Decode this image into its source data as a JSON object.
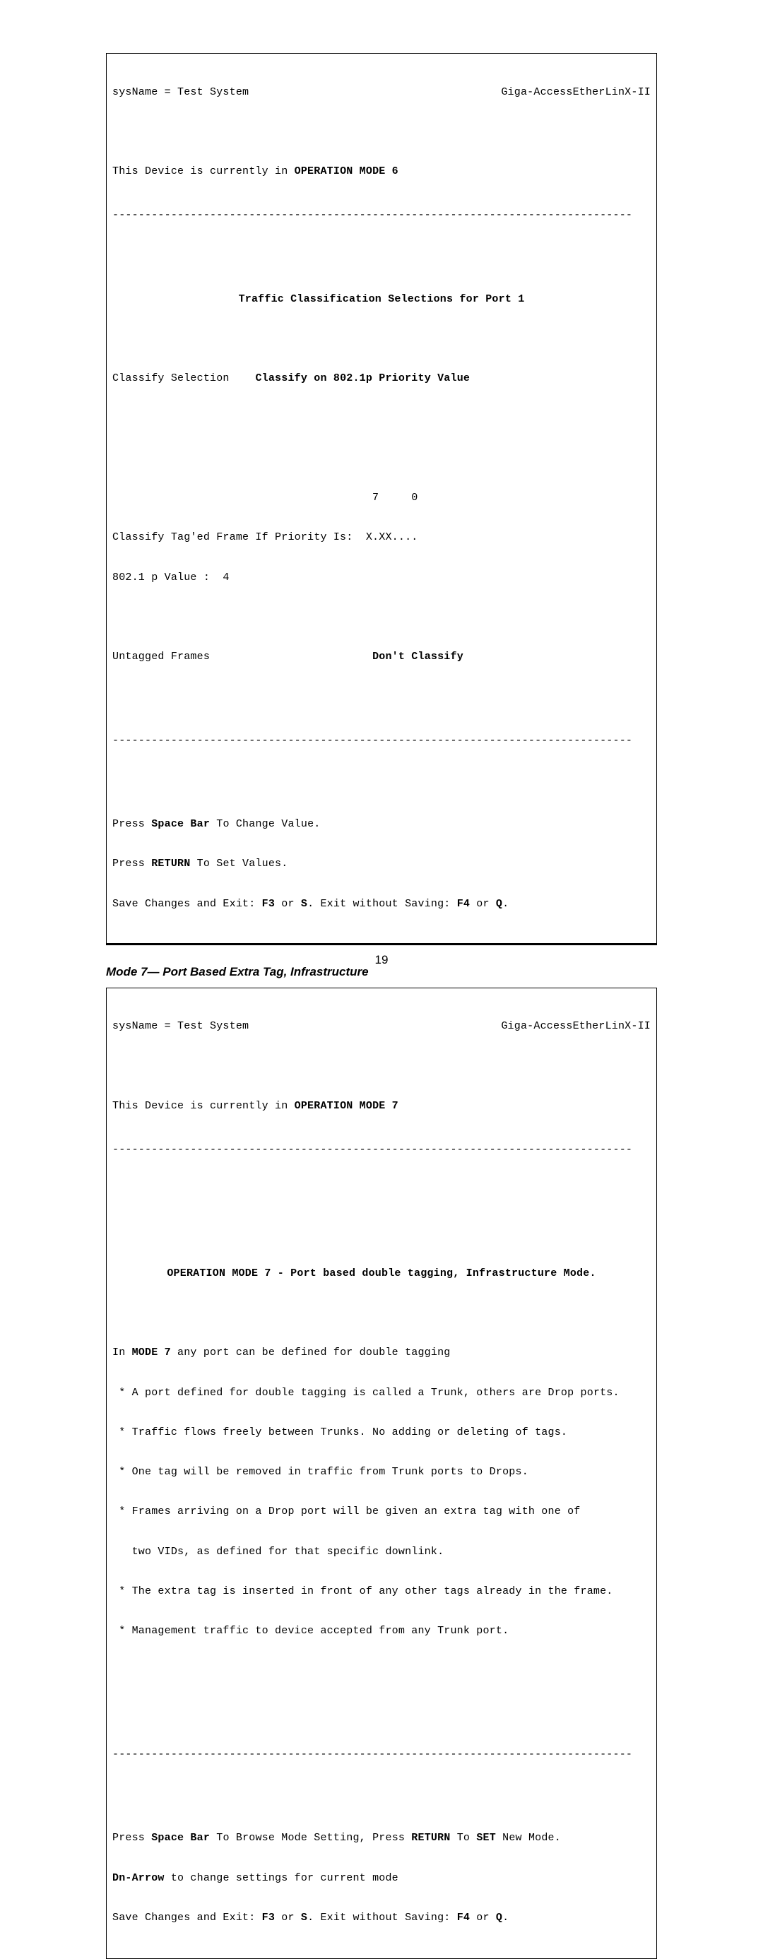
{
  "screen1": {
    "sysname_label": "sysName = Test System",
    "device_name": "Giga-AccessEtherLinX-II",
    "mode_prefix": "This Device is currently in ",
    "mode_bold": "OPERATION MODE 6",
    "rule": "--------------------------------------------------------------------------------",
    "title": "Traffic Classification Selections for Port 1",
    "classify_sel_label": "Classify Selection",
    "classify_sel_value": "Classify on 802.1p Priority Value",
    "priority_header": "                                        7     0",
    "tagged_label": "Classify Tag'ed Frame If Priority Is:  X.XX....",
    "value_label": "802.1 p Value :  4",
    "untagged_label": "Untagged Frames",
    "untagged_value": "Don't Classify",
    "help1_pre": "Press ",
    "help1_bold": "Space Bar",
    "help1_post": " To Change Value.",
    "help2_pre": "Press ",
    "help2_bold": "RETURN",
    "help2_post": " To Set Values.",
    "help3_a": "Save Changes and Exit: ",
    "help3_b": "F3",
    "help3_c": " or ",
    "help3_d": "S",
    "help3_e": ". Exit without Saving: ",
    "help3_f": "F4",
    "help3_g": " or ",
    "help3_h": "Q",
    "help3_i": "."
  },
  "caption": "Mode 7— Port Based Extra Tag, Infrastructure",
  "screen2": {
    "sysname_label": "sysName = Test System",
    "device_name": "Giga-AccessEtherLinX-II",
    "mode_prefix": "This Device is currently in ",
    "mode_bold": "OPERATION MODE 7",
    "rule": "--------------------------------------------------------------------------------",
    "title_a": "OPERATION MODE 7",
    "title_b": " - Port based double tagging, Infrastructure Mode.",
    "body0_a": "In ",
    "body0_b": "MODE 7",
    "body0_c": " any port can be defined for double tagging",
    "body1": " * A port defined for double tagging is called a Trunk, others are Drop ports.",
    "body2": " * Traffic flows freely between Trunks. No adding or deleting of tags.",
    "body3": " * One tag will be removed in traffic from Trunk ports to Drops.",
    "body4": " * Frames arriving on a Drop port will be given an extra tag with one of",
    "body4b": "   two VIDs, as defined for that specific downlink.",
    "body5": " * The extra tag is inserted in front of any other tags already in the frame.",
    "body6": " * Management traffic to device accepted from any Trunk port.",
    "help1_a": "Press ",
    "help1_b": "Space Bar",
    "help1_c": " To Browse Mode Setting, Press ",
    "help1_d": "RETURN",
    "help1_e": " To ",
    "help1_f": "SET",
    "help1_g": " New Mode.",
    "help2_a": "Dn-Arrow",
    "help2_b": " to change settings for current mode",
    "help3_a": "Save Changes and Exit: ",
    "help3_b": "F3",
    "help3_c": " or ",
    "help3_d": "S",
    "help3_e": ". Exit without Saving: ",
    "help3_f": "F4",
    "help3_g": " or ",
    "help3_h": "Q",
    "help3_i": "."
  },
  "page_number": "19"
}
